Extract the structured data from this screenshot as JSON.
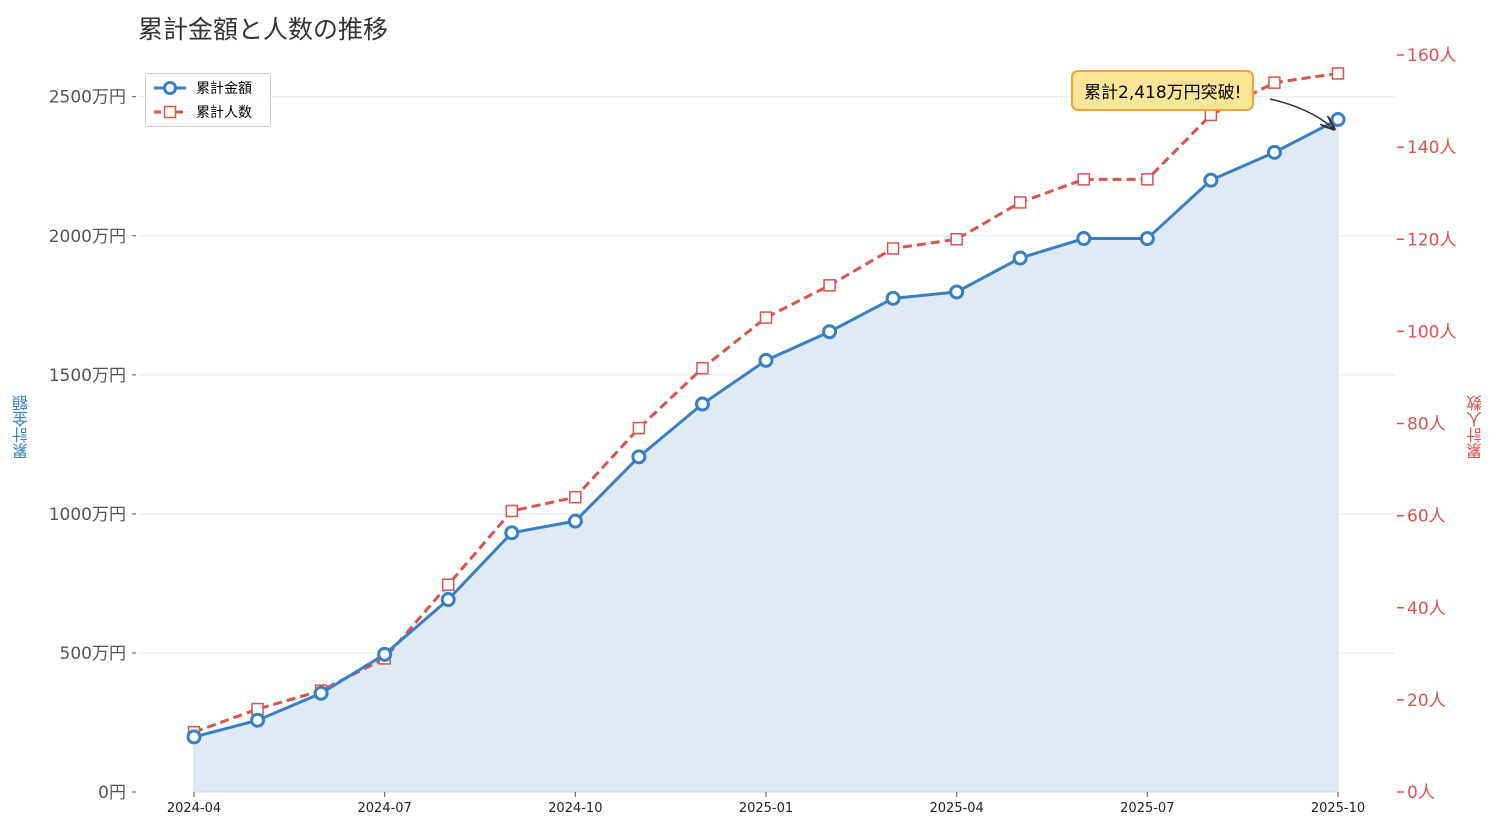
{
  "title": "累計金額と人数の推移",
  "legend": {
    "amount_label": "累計金額",
    "count_label": "累計人数"
  },
  "ylabel_left": "累計金額",
  "ylabel_right": "累計人数",
  "annotation": "累計2,418万円突破!",
  "colors": {
    "amount": "#3a7fc1",
    "count": "#d9534f",
    "fill": "#dfeaf5",
    "callout_bg": "#fce594",
    "callout_border": "#f0a03c"
  },
  "chart_data": {
    "type": "line",
    "title": "累計金額と人数の推移",
    "x": [
      "2024-04",
      "2024-05",
      "2024-06",
      "2024-07",
      "2024-08",
      "2024-09",
      "2024-10",
      "2024-11",
      "2024-12",
      "2025-01",
      "2025-02",
      "2025-03",
      "2025-04",
      "2025-05",
      "2025-06",
      "2025-07",
      "2025-08",
      "2025-09",
      "2025-10"
    ],
    "x_tick_labels": [
      "2024-04",
      "2024-07",
      "2024-10",
      "2025-01",
      "2025-04",
      "2025-07",
      "2025-10"
    ],
    "series": [
      {
        "name": "累計金額",
        "axis": "left",
        "unit": "万円",
        "values": [
          198,
          258,
          355,
          495,
          692,
          932,
          974,
          1205,
          1395,
          1552,
          1655,
          1775,
          1798,
          1920,
          1990,
          1990,
          2200,
          2300,
          2418
        ]
      },
      {
        "name": "累計人数",
        "axis": "right",
        "unit": "人",
        "values": [
          13,
          18,
          22,
          29,
          45,
          61,
          64,
          79,
          92,
          103,
          110,
          118,
          120,
          128,
          133,
          133,
          147,
          154,
          156
        ]
      }
    ],
    "y_left": {
      "label": "累計金額",
      "ylim": [
        0,
        2650
      ],
      "ticks": [
        0,
        500,
        1000,
        1500,
        2000,
        2500
      ],
      "tick_labels": [
        "0円",
        "500万円",
        "1000万円",
        "1500万円",
        "2000万円",
        "2500万円"
      ]
    },
    "y_right": {
      "label": "累計人数",
      "ylim": [
        0,
        160
      ],
      "ticks": [
        0,
        20,
        40,
        60,
        80,
        100,
        120,
        140,
        160
      ],
      "tick_labels": [
        "0人",
        "20人",
        "40人",
        "60人",
        "80人",
        "100人",
        "120人",
        "140人",
        "160人"
      ]
    },
    "grid": "horizontal",
    "legend_position": "top-left",
    "area_fill": "累計金額"
  }
}
